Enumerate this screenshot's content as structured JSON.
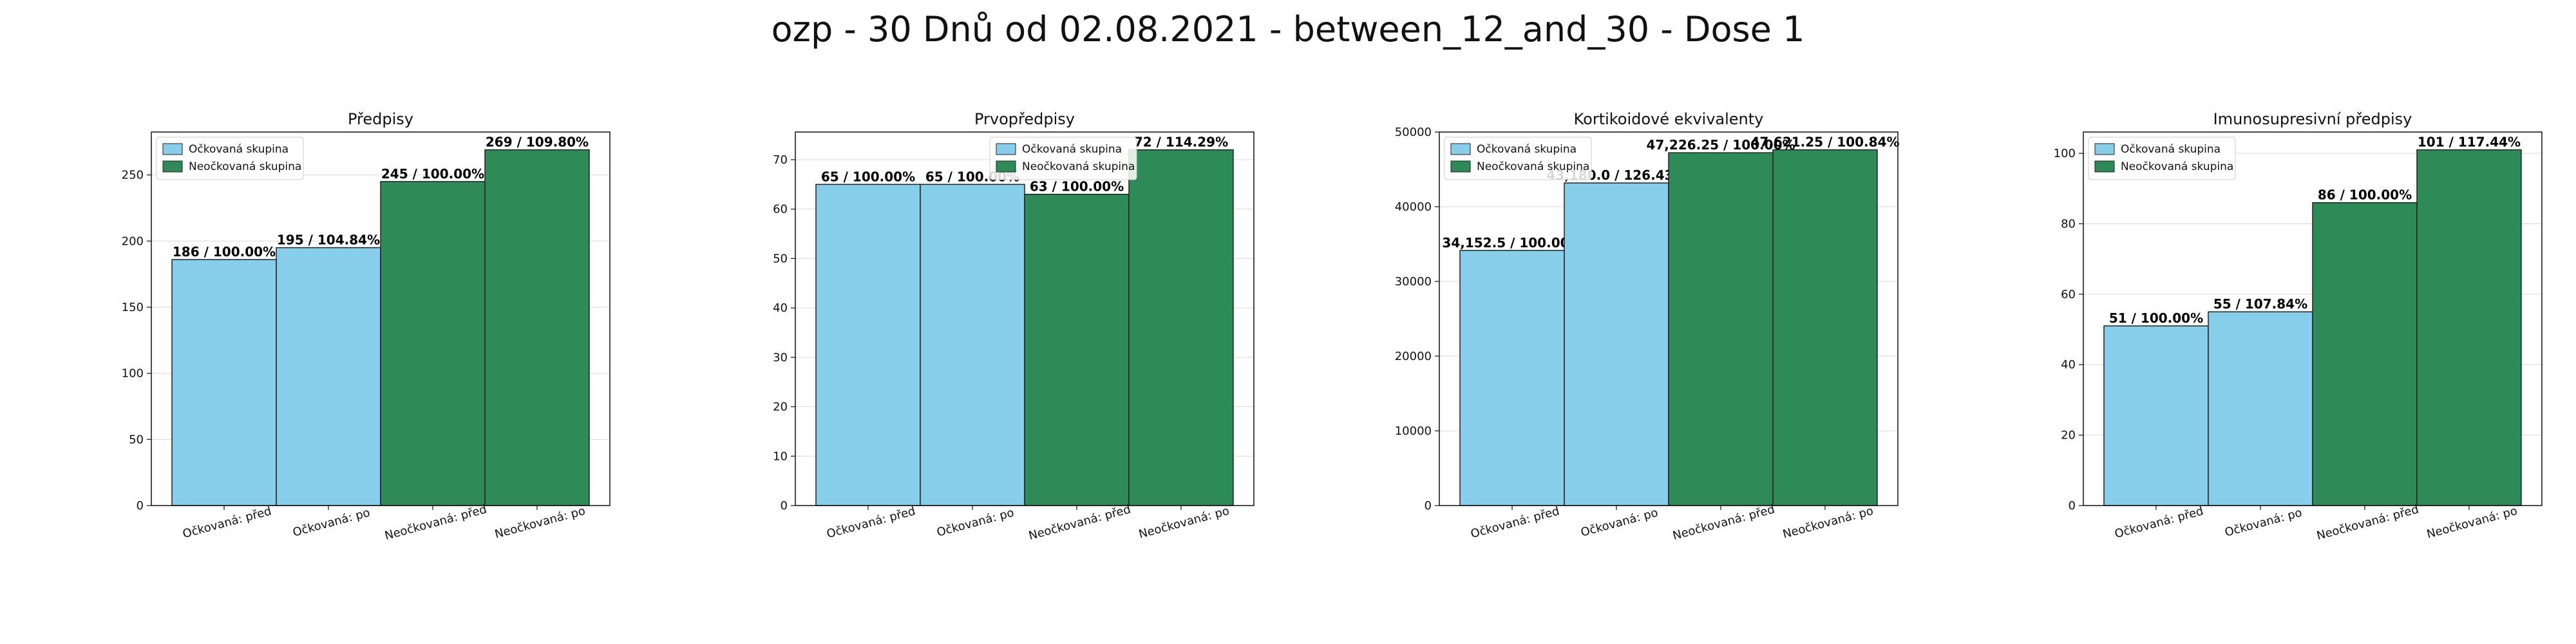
{
  "suptitle": "ozp - 30 Dnů od 02.08.2021 - between_12_and_30 - Dose 1",
  "colors": {
    "vaccinated": "#87CEEB",
    "unvaccinated": "#2E8B57",
    "edge": "#222222",
    "grid": "#d9d9d9"
  },
  "chart_data": [
    {
      "type": "bar",
      "title": "Předpisy",
      "categories": [
        "Očkovaná: před",
        "Očkovaná: po",
        "Neočkovaná: před",
        "Neočkovaná: po"
      ],
      "values": [
        186,
        195,
        245,
        269
      ],
      "bar_labels": [
        "186 / 100.00%",
        "195 / 104.84%",
        "245 / 100.00%",
        "269 / 109.80%"
      ],
      "groups": [
        "vaccinated",
        "vaccinated",
        "unvaccinated",
        "unvaccinated"
      ],
      "legend": [
        "Očkovaná skupina",
        "Neočkovaná skupina"
      ],
      "legend_placement": "upper-left",
      "yticks": [
        0,
        50,
        100,
        150,
        200,
        250
      ],
      "ylim": [
        0,
        282.45
      ],
      "grid": true
    },
    {
      "type": "bar",
      "title": "Prvopředpisy",
      "categories": [
        "Očkovaná: před",
        "Očkovaná: po",
        "Neočkovaná: před",
        "Neočkovaná: po"
      ],
      "values": [
        65,
        65,
        63,
        72
      ],
      "bar_labels": [
        "65 / 100.00%",
        "65 / 100.00%",
        "63 / 100.00%",
        "72 / 114.29%"
      ],
      "groups": [
        "vaccinated",
        "vaccinated",
        "unvaccinated",
        "unvaccinated"
      ],
      "legend": [
        "Očkovaná skupina",
        "Neočkovaná skupina"
      ],
      "legend_placement": "upper-center",
      "yticks": [
        0,
        10,
        20,
        30,
        40,
        50,
        60,
        70
      ],
      "ylim": [
        0,
        75.6
      ],
      "grid": true
    },
    {
      "type": "bar",
      "title": "Kortikoidové ekvivalenty",
      "categories": [
        "Očkovaná: před",
        "Očkovaná: po",
        "Neočkovaná: před",
        "Neočkovaná: po"
      ],
      "values": [
        34152.5,
        43180.0,
        47226.25,
        47621.25
      ],
      "bar_labels": [
        "34,152.5 / 100.00%",
        "43,180.0 / 126.43%",
        "47,226.25 / 100.00%",
        "47,621.25 / 100.84%"
      ],
      "groups": [
        "vaccinated",
        "vaccinated",
        "unvaccinated",
        "unvaccinated"
      ],
      "legend": [
        "Očkovaná skupina",
        "Neočkovaná skupina"
      ],
      "legend_placement": "upper-left",
      "yticks": [
        0,
        10000,
        20000,
        30000,
        40000,
        50000
      ],
      "ylim": [
        0,
        50000
      ],
      "grid": true
    },
    {
      "type": "bar",
      "title": "Imunosupresivní předpisy",
      "categories": [
        "Očkovaná: před",
        "Očkovaná: po",
        "Neočkovaná: před",
        "Neočkovaná: po"
      ],
      "values": [
        51,
        55,
        86,
        101
      ],
      "bar_labels": [
        "51 / 100.00%",
        "55 / 107.84%",
        "86 / 100.00%",
        "101 / 117.44%"
      ],
      "groups": [
        "vaccinated",
        "vaccinated",
        "unvaccinated",
        "unvaccinated"
      ],
      "legend": [
        "Očkovaná skupina",
        "Neočkovaná skupina"
      ],
      "legend_placement": "upper-left",
      "yticks": [
        0,
        20,
        40,
        60,
        80,
        100
      ],
      "ylim": [
        0,
        106.05
      ],
      "grid": true
    }
  ]
}
